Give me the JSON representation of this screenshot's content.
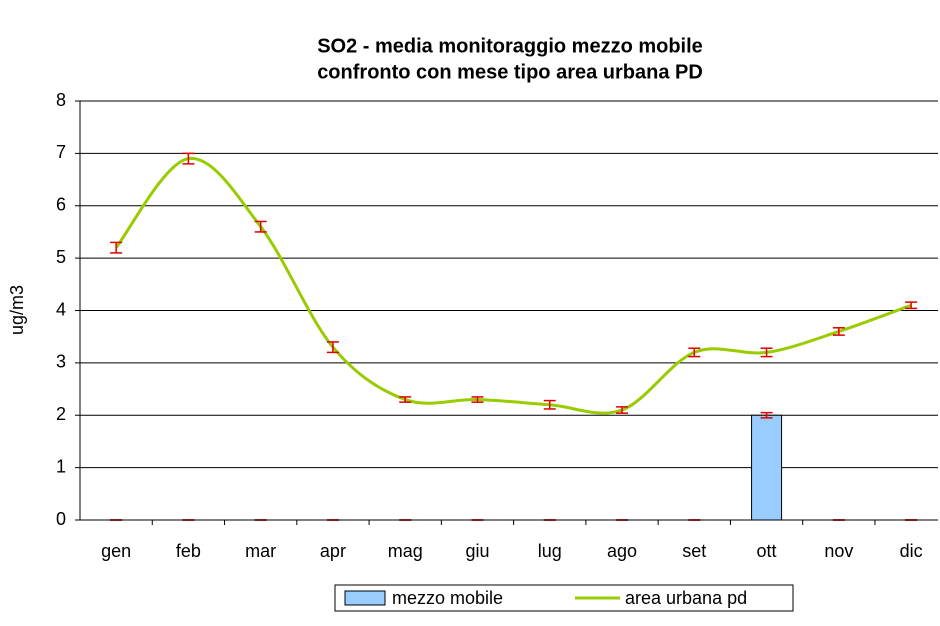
{
  "chart_data": {
    "type": "bar_line",
    "title": [
      "SO2 - media monitoraggio mezzo mobile",
      "confronto con mese tipo area urbana PD"
    ],
    "y_label": "ug/m3",
    "categories": [
      "gen",
      "feb",
      "mar",
      "apr",
      "mag",
      "giu",
      "lug",
      "ago",
      "set",
      "ott",
      "nov",
      "dic"
    ],
    "series": [
      {
        "name": "mezzo mobile",
        "type": "bar",
        "color": "#99ccff",
        "values": [
          0,
          0,
          0,
          0,
          0,
          0,
          0,
          0,
          0,
          2.0,
          0,
          0
        ],
        "errors": [
          0,
          0,
          0,
          0,
          0,
          0,
          0,
          0,
          0,
          0.05,
          0,
          0
        ]
      },
      {
        "name": "area urbana pd",
        "type": "line",
        "color": "#99cc00",
        "values": [
          5.2,
          6.9,
          5.6,
          3.3,
          2.3,
          2.3,
          2.2,
          2.1,
          3.2,
          3.2,
          3.6,
          4.1
        ],
        "errors": [
          0.1,
          0.1,
          0.1,
          0.1,
          0.05,
          0.05,
          0.08,
          0.06,
          0.08,
          0.08,
          0.07,
          0.06
        ]
      }
    ],
    "error_color": "#e00000",
    "ylim": [
      0,
      8
    ],
    "yticks": [
      0,
      1,
      2,
      3,
      4,
      5,
      6,
      7,
      8
    ],
    "grid": true,
    "legend": "bottom"
  }
}
